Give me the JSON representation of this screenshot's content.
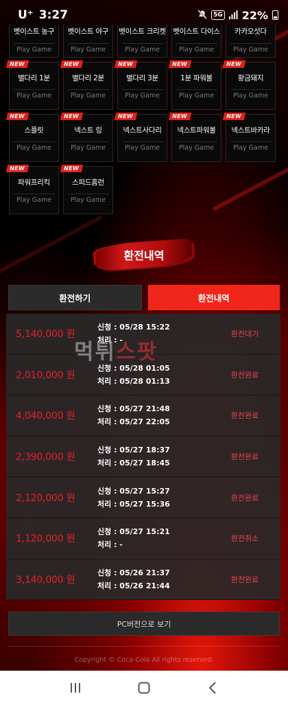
{
  "statusbar": {
    "carrier": "U⁺",
    "time": "3:27",
    "net": "5G",
    "battery": "22%"
  },
  "games": [
    {
      "name": "벳이스트 농구",
      "play": "Play Game",
      "new": false
    },
    {
      "name": "벳이스트 야구",
      "play": "Play Game",
      "new": false
    },
    {
      "name": "벳이스트 크리켓",
      "play": "Play Game",
      "new": false
    },
    {
      "name": "벳이스트 다이스",
      "play": "Play Game",
      "new": false
    },
    {
      "name": "카카오섯다",
      "play": "Play Game",
      "new": false
    },
    {
      "name": "별다리 1분",
      "play": "Play Game",
      "new": true
    },
    {
      "name": "별다리 2분",
      "play": "Play Game",
      "new": true
    },
    {
      "name": "별다리 3분",
      "play": "Play Game",
      "new": true
    },
    {
      "name": "1분 파워볼",
      "play": "Play Game",
      "new": true
    },
    {
      "name": "황금돼지",
      "play": "Play Game",
      "new": true
    },
    {
      "name": "스플릿",
      "play": "Play Game",
      "new": true
    },
    {
      "name": "넥스트 링",
      "play": "Play Game",
      "new": true
    },
    {
      "name": "넥스트사다리",
      "play": "Play Game",
      "new": true
    },
    {
      "name": "넥스트파워볼",
      "play": "Play Game",
      "new": true
    },
    {
      "name": "넥스트바카라",
      "play": "Play Game",
      "new": true
    },
    {
      "name": "파워프리킥",
      "play": "Play Game",
      "new": true
    },
    {
      "name": "스피드홈런",
      "play": "Play Game",
      "new": true
    }
  ],
  "new_label": "NEW",
  "section_title": "환전내역",
  "tabs": {
    "withdraw": "환전하기",
    "history": "환전내역"
  },
  "history": [
    {
      "amount": "5,140,000 원",
      "request": "신청 : 05/28 15:22",
      "process": "처리 : -",
      "status": "환전대기"
    },
    {
      "amount": "2,010,000 원",
      "request": "신청 : 05/28 01:05",
      "process": "처리 : 05/28 01:13",
      "status": "환전완료"
    },
    {
      "amount": "4,040,000 원",
      "request": "신청 : 05/27 21:48",
      "process": "처리 : 05/27 22:05",
      "status": "환전완료"
    },
    {
      "amount": "2,390,000 원",
      "request": "신청 : 05/27 18:37",
      "process": "처리 : 05/27 18:45",
      "status": "환전완료"
    },
    {
      "amount": "2,120,000 원",
      "request": "신청 : 05/27 15:27",
      "process": "처리 : 05/27 15:36",
      "status": "환전완료"
    },
    {
      "amount": "1,120,000 원",
      "request": "신청 : 05/27 15:21",
      "process": "처리 : -",
      "status": "환전취소"
    },
    {
      "amount": "3,140,000 원",
      "request": "신청 : 05/26 21:37",
      "process": "처리 : 05/26 21:44",
      "status": "환전완료"
    }
  ],
  "watermark": {
    "part1": "먹튀",
    "part2": "스팟"
  },
  "pc_button": "PC버전으로 보기",
  "copyright": "Copyright © Coca-Cola All rights reserved.",
  "colors": {
    "accent": "#f0261a",
    "amount": "#e9202a"
  }
}
